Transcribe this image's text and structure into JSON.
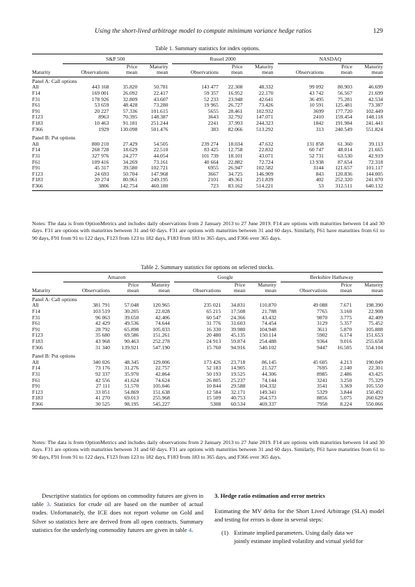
{
  "header": {
    "title": "Using the short-lived arbitrage model to compute minimum variance hedge ratios",
    "page_number": "129"
  },
  "table1": {
    "caption": "Table 1.  Summary statistics for index options.",
    "groups": [
      "S&P 500",
      "Russel 2000",
      "NASDAQ"
    ],
    "col_maturity": "Maturity",
    "col_obs": "Observations",
    "col_price_1": "Price",
    "col_price_2": "mean",
    "col_mat_1": "Maturity",
    "col_mat_2": "mean",
    "panel_a": "Panel A: Call options",
    "panel_b": "Panel B: Put options",
    "calls": [
      [
        "All",
        "443 168",
        "35.820",
        "50.781",
        "143 477",
        "22.308",
        "48.332",
        "99 092",
        "80.903",
        "46.699"
      ],
      [
        "F14",
        "169 001",
        "26.092",
        "22.417",
        "59 357",
        "16.952",
        "22.170",
        "43 742",
        "56.567",
        "21.699"
      ],
      [
        "F31",
        "178 926",
        "32.809",
        "43.607",
        "52 233",
        "23.948",
        "42.641",
        "36 495",
        "75.281",
        "42.534"
      ],
      [
        "F61",
        "53 659",
        "48.428",
        "73.280",
        "19 965",
        "26.727",
        "73.426",
        "10 591",
        "125.481",
        "73.387"
      ],
      [
        "F91",
        "20 227",
        "57.336",
        "101.615",
        "5655",
        "28.461",
        "102.932",
        "3699",
        "177.720",
        "102.449"
      ],
      [
        "F123",
        "8963",
        "70.395",
        "148.387",
        "3643",
        "32.792",
        "147.071",
        "2410",
        "159.454",
        "148.118"
      ],
      [
        "F183",
        "10 463",
        "91.181",
        "251.244",
        "2241",
        "37.993",
        "244.323",
        "1842",
        "191.984",
        "241.441"
      ],
      [
        "F366",
        "1929",
        "130.098",
        "501.476",
        "383",
        "82.066",
        "513.292",
        "313",
        "240.549",
        "551.824"
      ]
    ],
    "puts": [
      [
        "All",
        "800 210",
        "27.429",
        "54.505",
        "239 274",
        "18.034",
        "47.632",
        "131 858",
        "61.360",
        "39.113"
      ],
      [
        "F14",
        "268 728",
        "18.629",
        "22.510",
        "83 425",
        "12.758",
        "22.832",
        "60 747",
        "48.014",
        "21.665"
      ],
      [
        "F31",
        "327 976",
        "24.277",
        "44.054",
        "101 739",
        "18.101",
        "43.071",
        "52 731",
        "63.530",
        "42.919"
      ],
      [
        "F61",
        "109 416",
        "34.269",
        "73.161",
        "40 664",
        "22.882",
        "72.724",
        "13 938",
        "87.654",
        "72.318"
      ],
      [
        "F91",
        "45 317",
        "39.580",
        "102.721",
        "6955",
        "26.947",
        "102.582",
        "3144",
        "121.657",
        "101.117"
      ],
      [
        "F123",
        "24 693",
        "50.704",
        "147.968",
        "3667",
        "34.725",
        "146.909",
        "843",
        "120.836",
        "144.005"
      ],
      [
        "F183",
        "20 274",
        "80.961",
        "249.195",
        "2101",
        "49.361",
        "251.839",
        "402",
        "252.320",
        "241.070"
      ],
      [
        "F366",
        "3806",
        "142.754",
        "460.180",
        "723",
        "83.162",
        "514.221",
        "53",
        "312.511",
        "640.132"
      ]
    ],
    "notes": "Notes: The data is from OptionMetrics and includes daily observations from 2 January 2013 to 27 June 2019. F14 are options with maturities between 14 and 30 days. F31 are options with maturities between 31 and 60 days. F31 are options with maturities between 31 and 60 days. Similarly, F61 have maturities from 61 to 90 days, F91 from 91 to 122 days, F123 from 123 to 182 days, F183 from 183 to 365 days, and F366 over 365 days."
  },
  "table2": {
    "caption": "Table 2.  Summary statistics for options on selected stocks.",
    "groups": [
      "Amazon",
      "Google",
      "Berkshire Hathaway"
    ],
    "col_maturity": "Maturity",
    "col_obs": "Observations",
    "col_price_1": "Price",
    "col_price_2": "mean",
    "col_mat_1": "Maturity",
    "col_mat_2": "mean",
    "panel_a": "Panel A: Call options",
    "panel_b": "Panel B: Put options",
    "calls": [
      [
        "All",
        "381 791",
        "57.048",
        "120.965",
        "235 021",
        "34.831",
        "110.870",
        "49 088",
        "7.671",
        "198.390"
      ],
      [
        "F14",
        "103 519",
        "30.205",
        "22.028",
        "65 215",
        "17.508",
        "21.788",
        "7765",
        "3.160",
        "22.908"
      ],
      [
        "F31",
        "96 063",
        "39.650",
        "42.406",
        "60 547",
        "24.366",
        "43.432",
        "9870",
        "3.775",
        "42.409"
      ],
      [
        "F61",
        "42 429",
        "49.536",
        "74.644",
        "31 776",
        "31.603",
        "74.454",
        "3129",
        "5.357",
        "75.452"
      ],
      [
        "F91",
        "28 792",
        "65.898",
        "105.033",
        "16 330",
        "39.980",
        "104.948",
        "3611",
        "5.870",
        "105.888"
      ],
      [
        "F123",
        "35 680",
        "69.586",
        "151.261",
        "20 480",
        "45.135",
        "150.114",
        "5902",
        "6.174",
        "151.653"
      ],
      [
        "F183",
        "43 968",
        "90.463",
        "252.278",
        "24 913",
        "59.874",
        "254.488",
        "9364",
        "9.016",
        "255.658"
      ],
      [
        "F366",
        "31 340",
        "139.921",
        "547.190",
        "15 760",
        "94.916",
        "540.102",
        "9447",
        "16.505",
        "554.104"
      ]
    ],
    "puts": [
      [
        "All",
        "340 026",
        "48.345",
        "129.006",
        "173 426",
        "23.718",
        "86.145",
        "45 605",
        "4.213",
        "190.049"
      ],
      [
        "F14",
        "73 176",
        "31.276",
        "22.757",
        "52 183",
        "14.905",
        "21.527",
        "7695",
        "2.140",
        "22.301"
      ],
      [
        "F31",
        "92 337",
        "35.970",
        "42.864",
        "50 193",
        "19.525",
        "44.306",
        "8985",
        "2.486",
        "43.425"
      ],
      [
        "F61",
        "42 556",
        "41.624",
        "74.624",
        "26 805",
        "25.237",
        "74.144",
        "3241",
        "3.250",
        "75.329"
      ],
      [
        "F91",
        "27 111",
        "51.570",
        "105.046",
        "10 844",
        "29.588",
        "104.332",
        "3541",
        "3.369",
        "105.550"
      ],
      [
        "F123",
        "33 051",
        "54.869",
        "151.638",
        "12 584",
        "32.171",
        "149.341",
        "5329",
        "3.844",
        "150.492"
      ],
      [
        "F183",
        "41 270",
        "69.013",
        "255.968",
        "15 509",
        "40.753",
        "264.573",
        "8856",
        "5.075",
        "260.629"
      ],
      [
        "F366",
        "30 525",
        "98.195",
        "545.227",
        "5308",
        "60.534",
        "469.337",
        "7958",
        "8.224",
        "550.066"
      ]
    ],
    "notes": "Notes: The data is from OptionMetrics and includes daily observations from 2 January 2013 to 27 June 2019. F14 are options with maturities between 14 and 30 days. F31 are options with maturities between 31 and 60 days. F31 are options with maturities between 31 and 60 days. Similarly, F61 have maturities from 61 to 90 days, F91 from 91 to 122 days, F123 from 123 to 182 days, F183 from 183 to 365 days, and F366 over 365 days."
  },
  "left_col": {
    "text_1": "Descriptive statistics for options on commodity futures are given in table ",
    "ref_1": "3",
    "text_2": ". Statistics for crude oil are based on the number of actual trades. Unfortunately, the ICE does not report volume on Gold and Silver so statistics here are derived from all open contracts. Summary statistics for the underlying commodity futures are given in table ",
    "ref_2": "4",
    "text_3": "."
  },
  "right_col": {
    "section_heading": "3.  Hedge ratio estimation and error metrics",
    "intro": "Estimating the MV delta for the Short Lived Arbitrage (SLA) model and testing for errors is done in several steps:",
    "step_1_label": "(1)",
    "step_1_line_1": "Estimate implied parameters. Using daily data we",
    "step_1_line_2": "jointly estimate implied volatility and virtual yield for"
  }
}
